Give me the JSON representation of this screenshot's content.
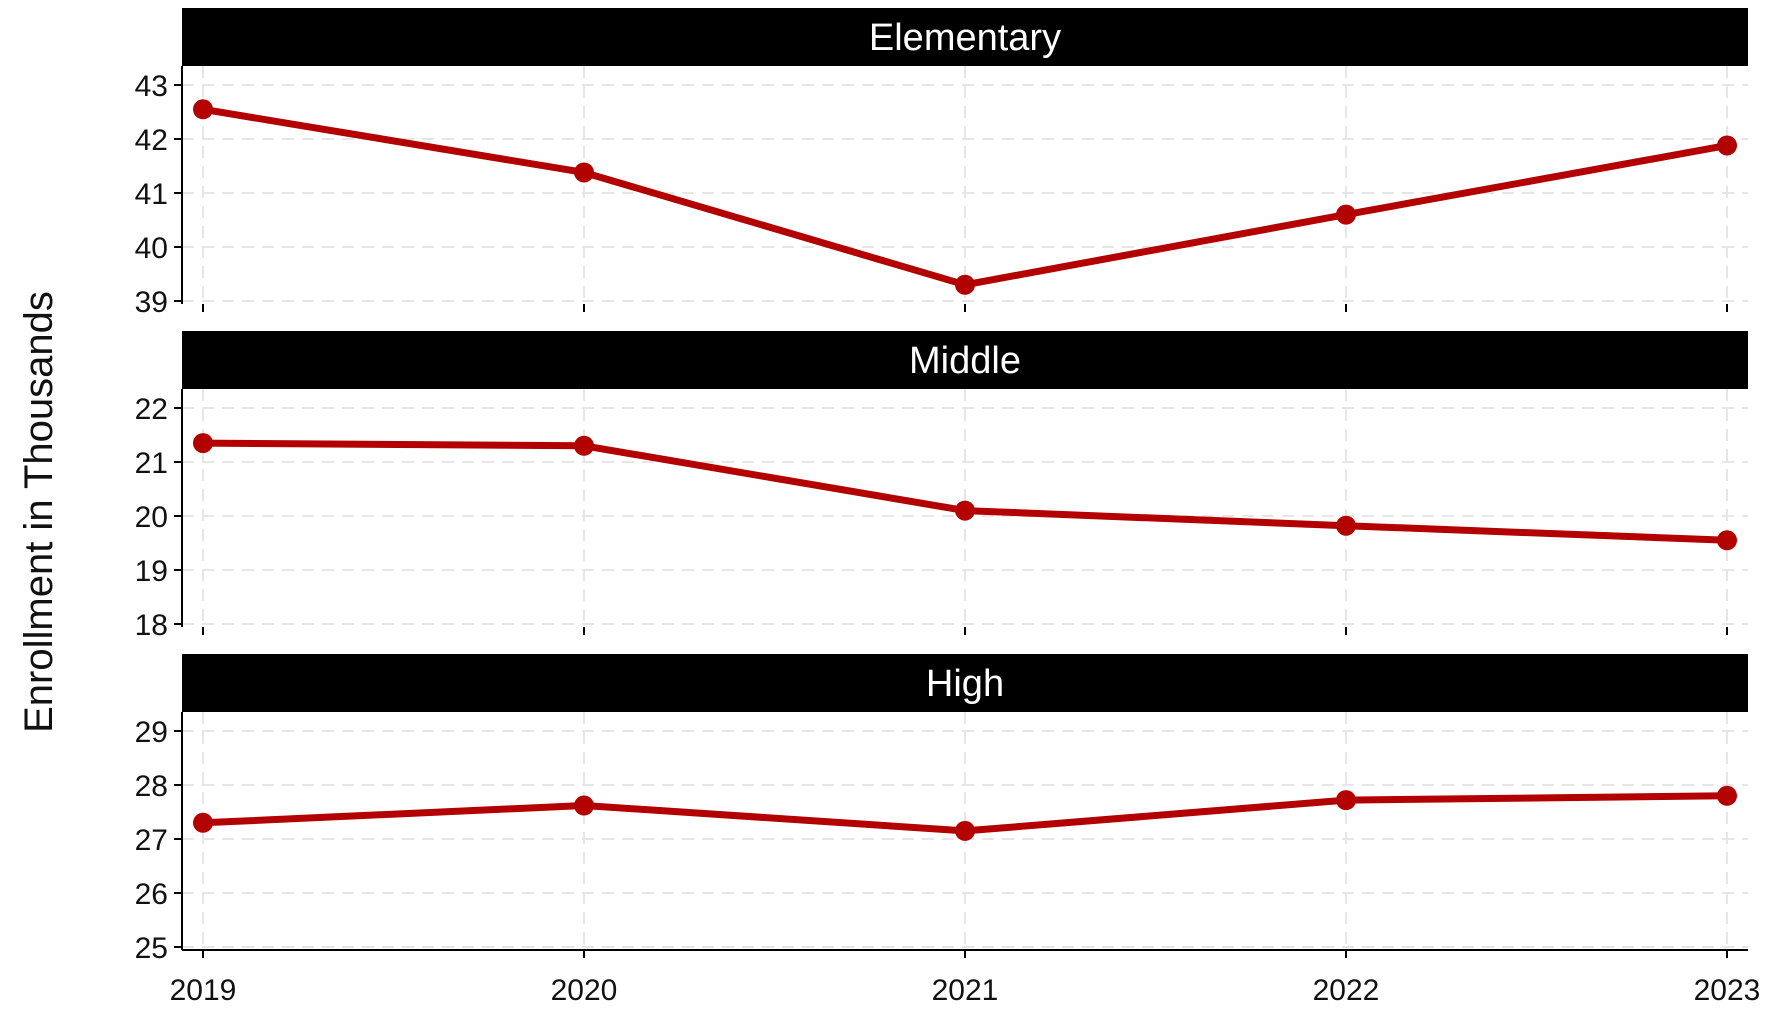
{
  "chart_data": {
    "type": "line",
    "ylabel": "Enrollment in Thousands",
    "x": [
      "2019",
      "2020",
      "2021",
      "2022",
      "2023"
    ],
    "colors": {
      "line": "#b30000",
      "strip_bg": "#000000",
      "strip_text": "#ffffff",
      "grid": "#e6e6e6"
    },
    "grid": true,
    "panels": [
      {
        "title": "Elementary",
        "ylim": [
          38.5,
          43.5
        ],
        "yticks": [
          "39",
          "40",
          "41",
          "42",
          "43"
        ],
        "values": [
          42.55,
          41.38,
          39.3,
          40.6,
          41.88
        ]
      },
      {
        "title": "Middle",
        "ylim": [
          17.5,
          22.5
        ],
        "yticks": [
          "18",
          "19",
          "20",
          "21",
          "22"
        ],
        "values": [
          21.35,
          21.3,
          20.1,
          19.82,
          19.55
        ]
      },
      {
        "title": "High",
        "ylim": [
          24.5,
          29.5
        ],
        "yticks": [
          "25",
          "26",
          "27",
          "28",
          "29"
        ],
        "values": [
          27.3,
          27.62,
          27.15,
          27.72,
          27.8
        ]
      }
    ]
  }
}
